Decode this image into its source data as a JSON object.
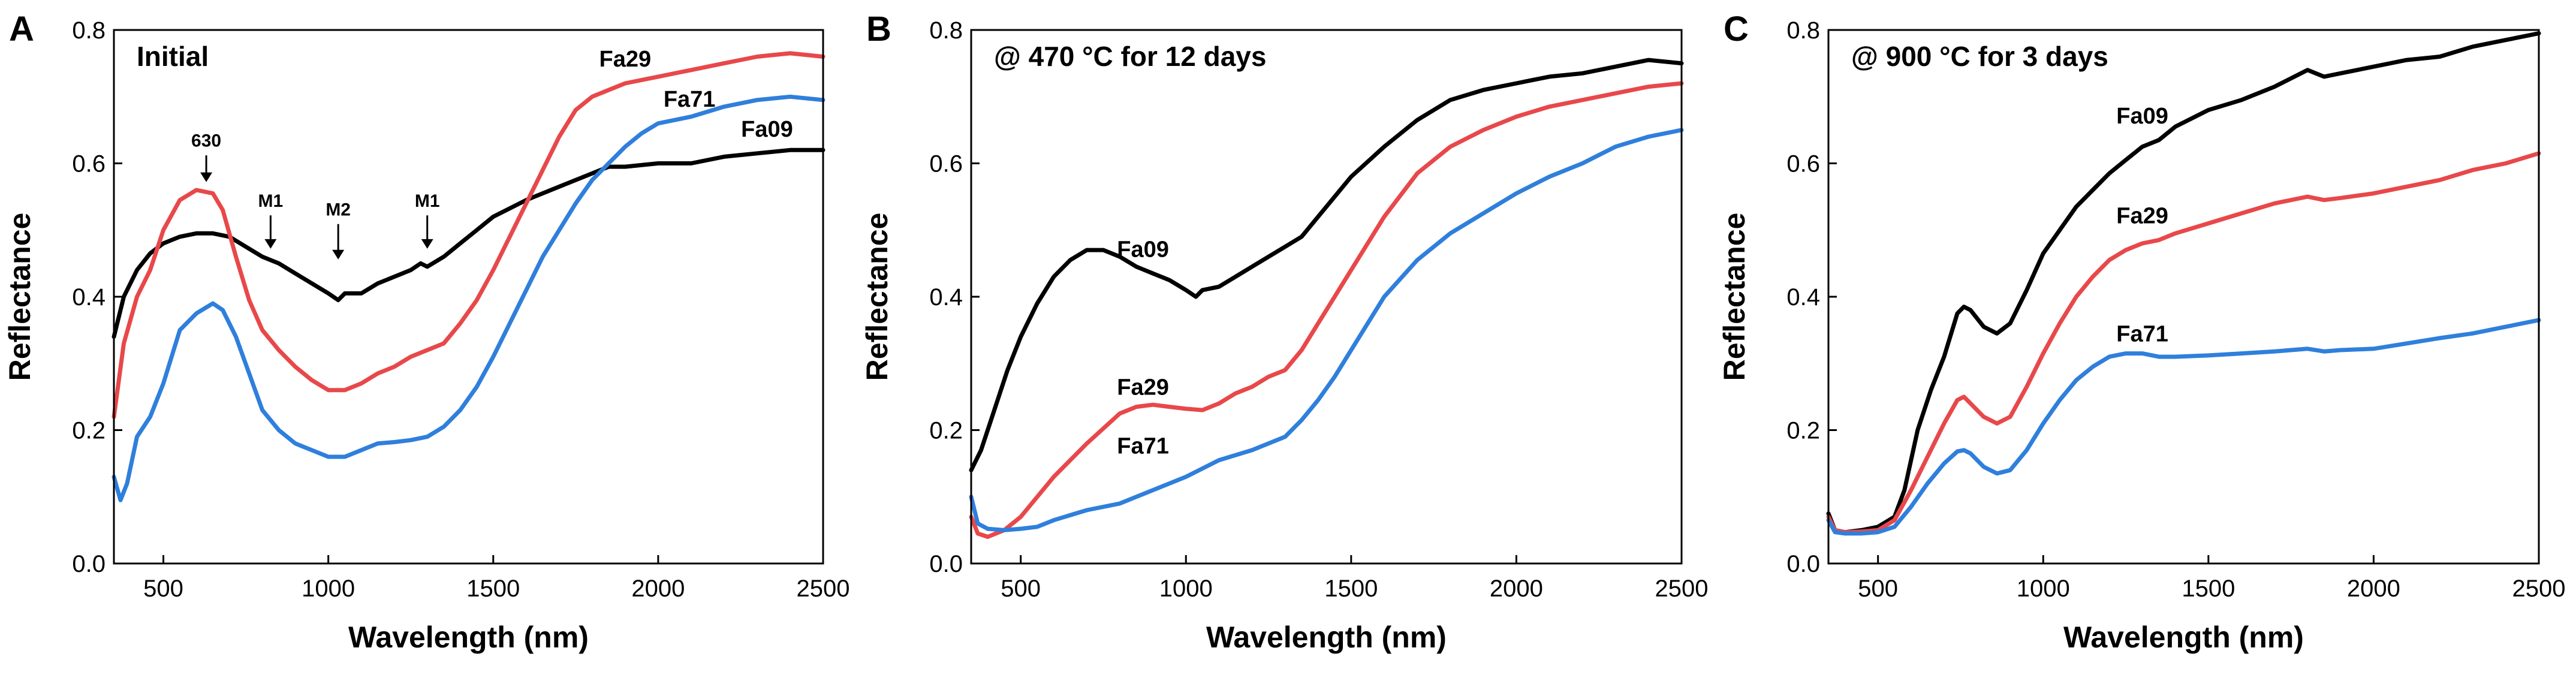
{
  "chart_data": [
    {
      "panel": "A",
      "type": "line",
      "title": "Initial",
      "xlabel": "Wavelength (nm)",
      "ylabel": "Reflectance",
      "xlim": [
        350,
        2500
      ],
      "ylim": [
        0.0,
        0.8
      ],
      "xticks": [
        500,
        1000,
        1500,
        2000,
        2500
      ],
      "xtick_labels": [
        "500",
        "1000",
        "1500",
        "2000",
        "2500"
      ],
      "yticks": [
        0.0,
        0.2,
        0.4,
        0.6,
        0.8
      ],
      "ytick_labels": [
        "0.0",
        "0.2",
        "0.4",
        "0.6",
        "0.8"
      ],
      "series": [
        {
          "name": "Fa09",
          "label": "Fa09",
          "color": "#000000",
          "label_at": [
            2330,
            0.64
          ],
          "x": [
            350,
            380,
            420,
            460,
            500,
            550,
            600,
            650,
            700,
            750,
            800,
            850,
            900,
            950,
            1000,
            1030,
            1050,
            1100,
            1150,
            1200,
            1250,
            1280,
            1300,
            1350,
            1400,
            1450,
            1500,
            1600,
            1700,
            1800,
            1850,
            1900,
            2000,
            2100,
            2200,
            2300,
            2400,
            2500
          ],
          "y": [
            0.34,
            0.4,
            0.44,
            0.465,
            0.48,
            0.49,
            0.495,
            0.495,
            0.49,
            0.475,
            0.46,
            0.45,
            0.435,
            0.42,
            0.405,
            0.395,
            0.405,
            0.405,
            0.42,
            0.43,
            0.44,
            0.45,
            0.445,
            0.46,
            0.48,
            0.5,
            0.52,
            0.545,
            0.565,
            0.585,
            0.595,
            0.595,
            0.6,
            0.6,
            0.61,
            0.615,
            0.62,
            0.62
          ]
        },
        {
          "name": "Fa29",
          "label": "Fa29",
          "color": "#e8484a",
          "label_at": [
            1900,
            0.745
          ],
          "x": [
            350,
            380,
            420,
            460,
            500,
            550,
            600,
            650,
            680,
            720,
            760,
            800,
            850,
            900,
            950,
            1000,
            1050,
            1100,
            1150,
            1200,
            1250,
            1300,
            1350,
            1400,
            1450,
            1500,
            1550,
            1600,
            1650,
            1700,
            1750,
            1800,
            1850,
            1900,
            2000,
            2100,
            2200,
            2300,
            2400,
            2500
          ],
          "y": [
            0.22,
            0.33,
            0.4,
            0.44,
            0.5,
            0.545,
            0.56,
            0.555,
            0.53,
            0.46,
            0.395,
            0.35,
            0.32,
            0.295,
            0.275,
            0.26,
            0.26,
            0.27,
            0.285,
            0.295,
            0.31,
            0.32,
            0.33,
            0.36,
            0.395,
            0.44,
            0.49,
            0.54,
            0.59,
            0.64,
            0.68,
            0.7,
            0.71,
            0.72,
            0.73,
            0.74,
            0.75,
            0.76,
            0.765,
            0.76
          ]
        },
        {
          "name": "Fa71",
          "label": "Fa71",
          "color": "#2f7fdc",
          "label_at": [
            2095,
            0.685
          ],
          "x": [
            350,
            370,
            390,
            420,
            460,
            500,
            550,
            600,
            650,
            680,
            720,
            760,
            800,
            850,
            900,
            950,
            1000,
            1050,
            1100,
            1150,
            1200,
            1250,
            1300,
            1350,
            1400,
            1450,
            1500,
            1550,
            1600,
            1650,
            1700,
            1750,
            1800,
            1850,
            1900,
            1950,
            2000,
            2100,
            2200,
            2300,
            2400,
            2500
          ],
          "y": [
            0.13,
            0.095,
            0.12,
            0.19,
            0.22,
            0.27,
            0.35,
            0.375,
            0.39,
            0.38,
            0.34,
            0.285,
            0.23,
            0.2,
            0.18,
            0.17,
            0.16,
            0.16,
            0.17,
            0.18,
            0.182,
            0.185,
            0.19,
            0.205,
            0.23,
            0.265,
            0.31,
            0.36,
            0.41,
            0.46,
            0.5,
            0.54,
            0.575,
            0.6,
            0.625,
            0.645,
            0.66,
            0.67,
            0.685,
            0.695,
            0.7,
            0.695
          ]
        }
      ],
      "annotations": [
        {
          "text": "630",
          "x": 630,
          "y_text": 0.625,
          "arrow_from": 0.612,
          "arrow_to": 0.572
        },
        {
          "text": "M1",
          "x": 825,
          "y_text": 0.535,
          "arrow_from": 0.522,
          "arrow_to": 0.472
        },
        {
          "text": "M2",
          "x": 1030,
          "y_text": 0.522,
          "arrow_from": 0.509,
          "arrow_to": 0.456
        },
        {
          "text": "M1",
          "x": 1300,
          "y_text": 0.535,
          "arrow_from": 0.522,
          "arrow_to": 0.472
        }
      ]
    },
    {
      "panel": "B",
      "type": "line",
      "title": "@ 470 °C for 12 days",
      "xlabel": "Wavelength (nm)",
      "ylabel": "Reflectance",
      "xlim": [
        350,
        2500
      ],
      "ylim": [
        0.0,
        0.8
      ],
      "xticks": [
        500,
        1000,
        1500,
        2000,
        2500
      ],
      "xtick_labels": [
        "500",
        "1000",
        "1500",
        "2000",
        "2500"
      ],
      "yticks": [
        0.0,
        0.2,
        0.4,
        0.6,
        0.8
      ],
      "ytick_labels": [
        "0.0",
        "0.2",
        "0.4",
        "0.6",
        "0.8"
      ],
      "series": [
        {
          "name": "Fa09",
          "label": "Fa09",
          "color": "#000000",
          "label_at": [
            870,
            0.46
          ],
          "x": [
            350,
            380,
            420,
            460,
            500,
            550,
            600,
            650,
            700,
            750,
            800,
            850,
            900,
            950,
            1000,
            1030,
            1050,
            1100,
            1150,
            1200,
            1250,
            1300,
            1350,
            1400,
            1450,
            1500,
            1600,
            1700,
            1800,
            1900,
            2000,
            2100,
            2200,
            2300,
            2400,
            2500
          ],
          "y": [
            0.14,
            0.17,
            0.23,
            0.29,
            0.34,
            0.39,
            0.43,
            0.455,
            0.47,
            0.47,
            0.46,
            0.445,
            0.435,
            0.425,
            0.41,
            0.4,
            0.41,
            0.415,
            0.43,
            0.445,
            0.46,
            0.475,
            0.49,
            0.52,
            0.55,
            0.58,
            0.625,
            0.665,
            0.695,
            0.71,
            0.72,
            0.73,
            0.735,
            0.745,
            0.755,
            0.75
          ]
        },
        {
          "name": "Fa29",
          "label": "Fa29",
          "color": "#e8484a",
          "label_at": [
            870,
            0.253
          ],
          "x": [
            350,
            370,
            400,
            450,
            500,
            550,
            600,
            700,
            800,
            850,
            900,
            950,
            1000,
            1050,
            1100,
            1150,
            1200,
            1250,
            1300,
            1350,
            1400,
            1450,
            1500,
            1600,
            1700,
            1800,
            1900,
            2000,
            2100,
            2200,
            2300,
            2400,
            2500
          ],
          "y": [
            0.07,
            0.045,
            0.04,
            0.05,
            0.07,
            0.1,
            0.13,
            0.18,
            0.225,
            0.235,
            0.238,
            0.235,
            0.232,
            0.23,
            0.24,
            0.255,
            0.265,
            0.28,
            0.29,
            0.32,
            0.36,
            0.4,
            0.44,
            0.52,
            0.585,
            0.625,
            0.65,
            0.67,
            0.685,
            0.695,
            0.705,
            0.715,
            0.72
          ]
        },
        {
          "name": "Fa71",
          "label": "Fa71",
          "color": "#2f7fdc",
          "label_at": [
            870,
            0.165
          ],
          "x": [
            350,
            370,
            400,
            450,
            500,
            550,
            600,
            700,
            800,
            900,
            1000,
            1100,
            1200,
            1300,
            1350,
            1400,
            1450,
            1500,
            1550,
            1600,
            1700,
            1800,
            1900,
            2000,
            2100,
            2200,
            2300,
            2400,
            2500
          ],
          "y": [
            0.1,
            0.06,
            0.052,
            0.05,
            0.052,
            0.055,
            0.065,
            0.08,
            0.09,
            0.11,
            0.13,
            0.155,
            0.17,
            0.19,
            0.215,
            0.245,
            0.28,
            0.32,
            0.36,
            0.4,
            0.455,
            0.495,
            0.525,
            0.555,
            0.58,
            0.6,
            0.625,
            0.64,
            0.65
          ]
        }
      ]
    },
    {
      "panel": "C",
      "type": "line",
      "title": "@ 900 °C for 3 days",
      "xlabel": "Wavelength (nm)",
      "ylabel": "Reflectance",
      "xlim": [
        350,
        2500
      ],
      "ylim": [
        0.0,
        0.8
      ],
      "xticks": [
        500,
        1000,
        1500,
        2000,
        2500
      ],
      "xtick_labels": [
        "500",
        "1000",
        "1500",
        "2000",
        "2500"
      ],
      "yticks": [
        0.0,
        0.2,
        0.4,
        0.6,
        0.8
      ],
      "ytick_labels": [
        "0.0",
        "0.2",
        "0.4",
        "0.6",
        "0.8"
      ],
      "series": [
        {
          "name": "Fa09",
          "label": "Fa09",
          "color": "#000000",
          "label_at": [
            1300,
            0.66
          ],
          "x": [
            350,
            370,
            400,
            450,
            500,
            550,
            580,
            620,
            660,
            700,
            740,
            760,
            780,
            820,
            860,
            900,
            950,
            1000,
            1050,
            1100,
            1150,
            1200,
            1250,
            1300,
            1350,
            1400,
            1500,
            1600,
            1700,
            1800,
            1850,
            1900,
            2000,
            2100,
            2200,
            2300,
            2400,
            2500
          ],
          "y": [
            0.075,
            0.05,
            0.047,
            0.05,
            0.055,
            0.07,
            0.11,
            0.2,
            0.26,
            0.31,
            0.375,
            0.385,
            0.38,
            0.355,
            0.345,
            0.36,
            0.41,
            0.465,
            0.5,
            0.535,
            0.56,
            0.585,
            0.605,
            0.625,
            0.635,
            0.655,
            0.68,
            0.695,
            0.715,
            0.74,
            0.73,
            0.735,
            0.745,
            0.755,
            0.76,
            0.775,
            0.785,
            0.795
          ]
        },
        {
          "name": "Fa29",
          "label": "Fa29",
          "color": "#e8484a",
          "label_at": [
            1300,
            0.51
          ],
          "x": [
            350,
            370,
            400,
            450,
            500,
            550,
            600,
            650,
            700,
            740,
            760,
            780,
            820,
            860,
            900,
            950,
            1000,
            1050,
            1100,
            1150,
            1200,
            1250,
            1300,
            1350,
            1400,
            1500,
            1600,
            1700,
            1800,
            1850,
            1900,
            2000,
            2100,
            2200,
            2300,
            2400,
            2500
          ],
          "y": [
            0.07,
            0.05,
            0.047,
            0.048,
            0.05,
            0.065,
            0.11,
            0.16,
            0.21,
            0.245,
            0.25,
            0.24,
            0.22,
            0.21,
            0.22,
            0.265,
            0.315,
            0.36,
            0.4,
            0.43,
            0.455,
            0.47,
            0.48,
            0.485,
            0.495,
            0.51,
            0.525,
            0.54,
            0.55,
            0.545,
            0.548,
            0.555,
            0.565,
            0.575,
            0.59,
            0.6,
            0.615
          ]
        },
        {
          "name": "Fa71",
          "label": "Fa71",
          "color": "#2f7fdc",
          "label_at": [
            1300,
            0.333
          ],
          "x": [
            350,
            370,
            400,
            450,
            500,
            550,
            600,
            650,
            700,
            740,
            760,
            780,
            820,
            860,
            900,
            950,
            1000,
            1050,
            1100,
            1150,
            1200,
            1250,
            1300,
            1350,
            1400,
            1500,
            1600,
            1700,
            1800,
            1850,
            1900,
            2000,
            2100,
            2200,
            2300,
            2400,
            2500
          ],
          "y": [
            0.065,
            0.047,
            0.045,
            0.045,
            0.047,
            0.055,
            0.085,
            0.12,
            0.15,
            0.168,
            0.17,
            0.165,
            0.145,
            0.135,
            0.14,
            0.17,
            0.21,
            0.245,
            0.275,
            0.295,
            0.31,
            0.315,
            0.315,
            0.31,
            0.31,
            0.312,
            0.315,
            0.318,
            0.322,
            0.318,
            0.32,
            0.322,
            0.33,
            0.338,
            0.345,
            0.355,
            0.365
          ]
        }
      ]
    }
  ]
}
